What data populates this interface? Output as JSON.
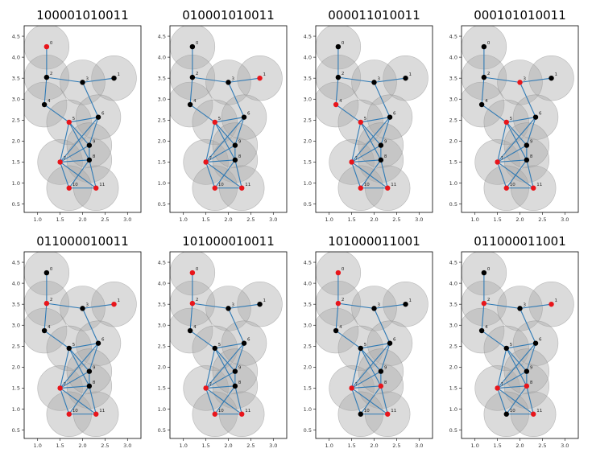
{
  "chart_data": {
    "type": "scatter",
    "description_of_elements": "graph",
    "xlim": [
      0.7,
      3.3
    ],
    "ylim": [
      0.3,
      4.75
    ],
    "xticks": [
      "1.0",
      "1.5",
      "2.0",
      "2.5",
      "3.0"
    ],
    "yticks": [
      "0.5",
      "1.0",
      "1.5",
      "2.0",
      "2.5",
      "3.0",
      "3.5",
      "4.0",
      "4.5"
    ],
    "xtick_values": [
      1.0,
      1.5,
      2.0,
      2.5,
      3.0
    ],
    "ytick_values": [
      0.5,
      1.0,
      1.5,
      2.0,
      2.5,
      3.0,
      3.5,
      4.0,
      4.5
    ],
    "disk_radius": 0.5,
    "colors": {
      "active": "#e8151b",
      "inactive": "#000000",
      "edge": "#2f7ab5",
      "disk": "#a9a9a9"
    },
    "nodes": [
      {
        "label": "0",
        "x": 1.2,
        "y": 4.25
      },
      {
        "label": "1",
        "x": 2.7,
        "y": 3.5
      },
      {
        "label": "2",
        "x": 1.2,
        "y": 3.52
      },
      {
        "label": "3",
        "x": 2.0,
        "y": 3.4
      },
      {
        "label": "4",
        "x": 1.15,
        "y": 2.87
      },
      {
        "label": "5",
        "x": 1.7,
        "y": 2.45
      },
      {
        "label": "6",
        "x": 2.35,
        "y": 2.57
      },
      {
        "label": "7",
        "x": 1.5,
        "y": 1.5
      },
      {
        "label": "8",
        "x": 2.15,
        "y": 1.55
      },
      {
        "label": "9",
        "x": 2.15,
        "y": 1.9
      },
      {
        "label": "10",
        "x": 1.7,
        "y": 0.88
      },
      {
        "label": "11",
        "x": 2.3,
        "y": 0.88
      }
    ],
    "edges": [
      [
        0,
        2
      ],
      [
        2,
        3
      ],
      [
        3,
        1
      ],
      [
        2,
        4
      ],
      [
        3,
        6
      ],
      [
        4,
        5
      ],
      [
        5,
        6
      ],
      [
        5,
        7
      ],
      [
        5,
        8
      ],
      [
        5,
        9
      ],
      [
        6,
        9
      ],
      [
        6,
        7
      ],
      [
        7,
        8
      ],
      [
        7,
        9
      ],
      [
        7,
        10
      ],
      [
        7,
        11
      ],
      [
        8,
        9
      ],
      [
        8,
        10
      ],
      [
        8,
        11
      ],
      [
        10,
        11
      ]
    ],
    "panels": [
      {
        "title": "100001010011"
      },
      {
        "title": "010001010011"
      },
      {
        "title": "000011010011"
      },
      {
        "title": "000101010011"
      },
      {
        "title": "011000010011"
      },
      {
        "title": "101000010011"
      },
      {
        "title": "101000011001"
      },
      {
        "title": "011000011001"
      }
    ]
  }
}
